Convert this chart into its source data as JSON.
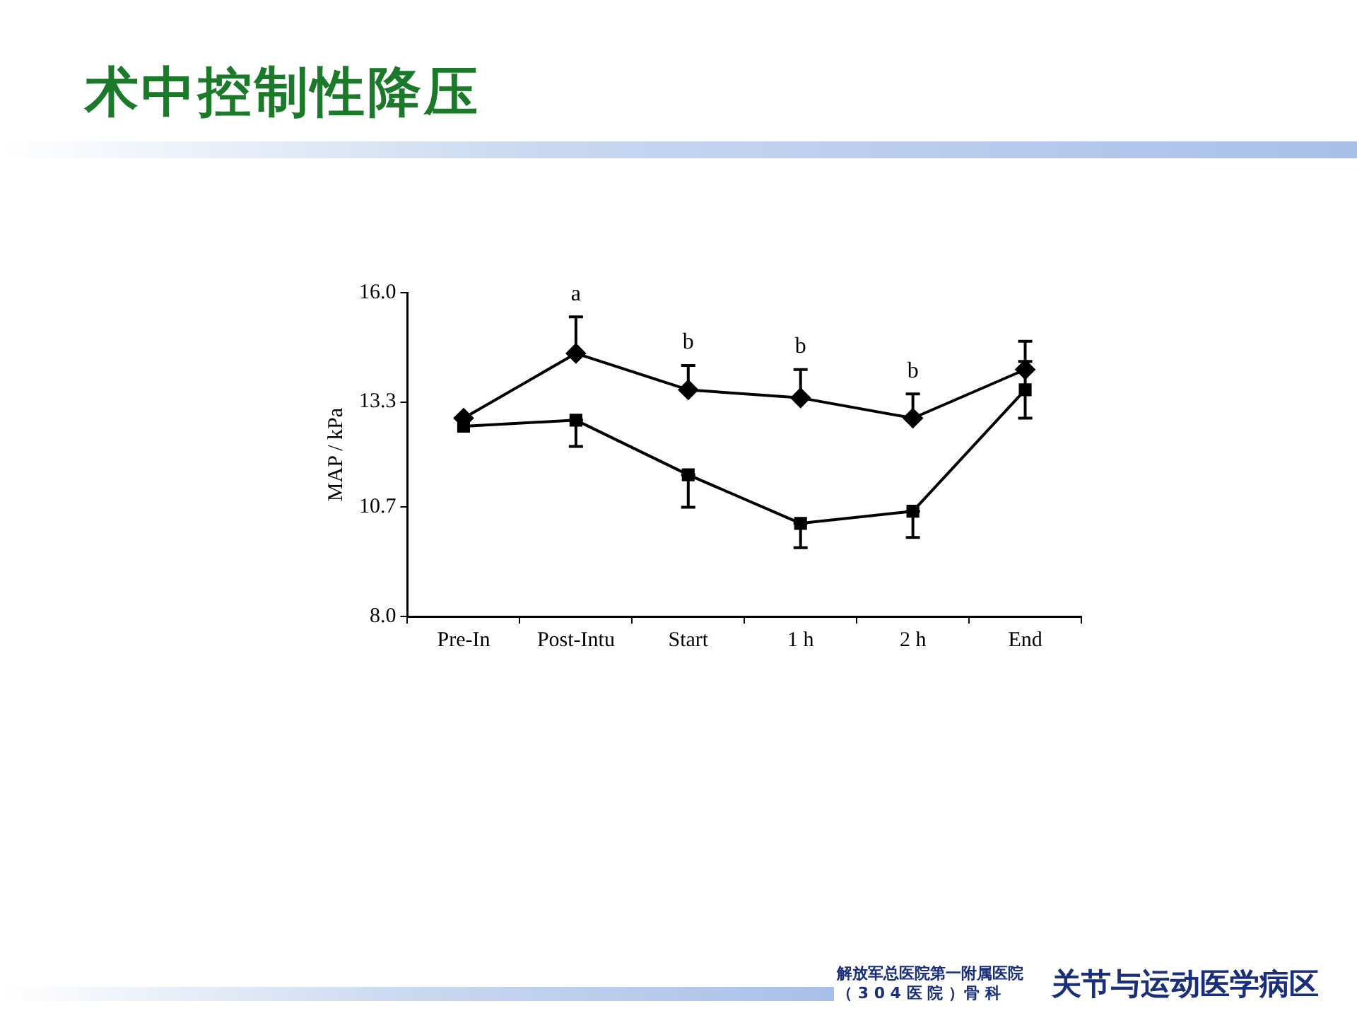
{
  "chart_data": {
    "type": "line",
    "title": "术中控制性降压",
    "ylabel": "MAP / kPa",
    "categories": [
      "Pre-In",
      "Post-Intu",
      "Start",
      "1 h",
      "2 h",
      "End"
    ],
    "ylim": [
      8,
      16
    ],
    "yticks": [
      {
        "value": 8,
        "label": "8.0"
      },
      {
        "value": 10.7,
        "label": "10.7"
      },
      {
        "value": 13.3,
        "label": "13.3"
      },
      {
        "value": 16,
        "label": "16.0"
      }
    ],
    "grid": false,
    "legend": false,
    "line_style": "solid",
    "series": [
      {
        "color": "#000000",
        "marker": "diamond",
        "values": [
          12.9,
          14.5,
          13.6,
          13.4,
          12.9,
          14.1
        ],
        "errors": [
          null,
          [
            14.5,
            15.4
          ],
          [
            13.6,
            14.2
          ],
          [
            13.4,
            14.1
          ],
          [
            12.9,
            13.5
          ],
          [
            14.1,
            14.8
          ]
        ]
      },
      {
        "color": "#000000",
        "marker": "square",
        "values": [
          12.7,
          12.85,
          11.5,
          10.3,
          10.6,
          13.6
        ],
        "errors": [
          null,
          [
            12.2,
            12.85
          ],
          [
            10.7,
            11.5
          ],
          [
            9.7,
            10.3
          ],
          [
            9.95,
            10.6
          ],
          [
            12.9,
            14.3
          ]
        ]
      }
    ],
    "annotations": [
      "a",
      "b",
      "b",
      "b",
      "解放军总医院第一附属医院",
      "（ 3 0 4 医 院 ）骨 科",
      "关节与运动医学病区"
    ]
  }
}
